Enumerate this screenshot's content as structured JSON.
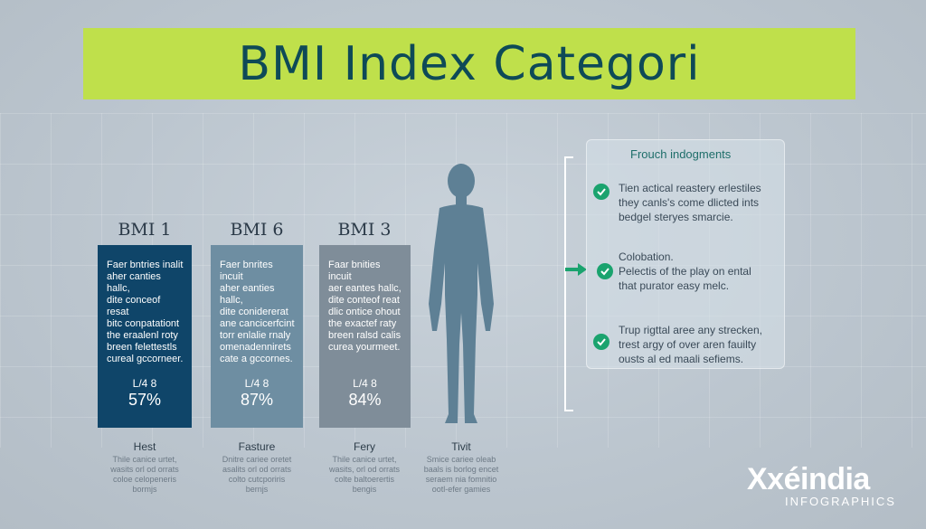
{
  "title": "BMI Index Categori",
  "columns": [
    {
      "heading": "BMI 1",
      "description": "Faer bntries inalit\naher canties hallc,\ndite conceof resat\nbitc conpatationt\nthe eraalenl roty\nbreen felettestls\ncureal gccorneer.",
      "ratio": "L/4 8",
      "percent": "57%",
      "color": "#0f4569",
      "caption_title": "Hest",
      "caption_text": "Thile canice urtet,\nwasits orl od orrats\ncoloe celopeneris\nbormjs"
    },
    {
      "heading": "BMI 6",
      "description": "Faer bnrites incuit\naher eanties hallc,\ndite conidererat\nane cancicerfcint\ntorr enlalie rnaly\nomenadennirets\ncate a gccornes.",
      "ratio": "L/4 8",
      "percent": "87%",
      "color": "#6e8ea2",
      "caption_title": "Fasture",
      "caption_text": "Dnitre cariee oretet\nasalits orl od orrats\ncolto cutcporiris\nbernjs"
    },
    {
      "heading": "BMI 3",
      "description": "Faar bnities incuit\naer eantes hallc,\ndite conteof reat\ndlic ontice ohout\nthe exactef raty\nbreen ralsd calis\ncurea yourmeet.",
      "ratio": "L/4 8",
      "percent": "84%",
      "color": "#7f8d99",
      "caption_title": "Fery",
      "caption_text": "Thile canice urtet,\nwasits, orl od orrats\ncolte baltoerertis\nbengis"
    }
  ],
  "figure_caption": {
    "title": "Tivit",
    "text": "Smice cariee oleab\nbaals is borlog encet\nseraem nia fomnitio\nootl-efer gamies"
  },
  "panel": {
    "title": "Frouch indogments",
    "items": [
      "Tien actical reastery erlestiles\nthey canls's come dlicted ints\nbedgel steryes smarcie.",
      "Colobation.\nPelectis of the play on ental\nthat purator easy melc.",
      "Trup rigttal aree any strecken,\ntrest argy of over aren fauilty\nousts al ed maali sefiems."
    ]
  },
  "brand": {
    "name": "Xxéindia",
    "subtitle": "INFOGRAPHICS"
  },
  "colors": {
    "banner": "#bfe04b",
    "title_text": "#0e4a57",
    "check": "#1aa36e",
    "figure": "#5e8095"
  },
  "icons": [
    "check-icon",
    "arrow-right-icon",
    "human-figure-icon"
  ]
}
